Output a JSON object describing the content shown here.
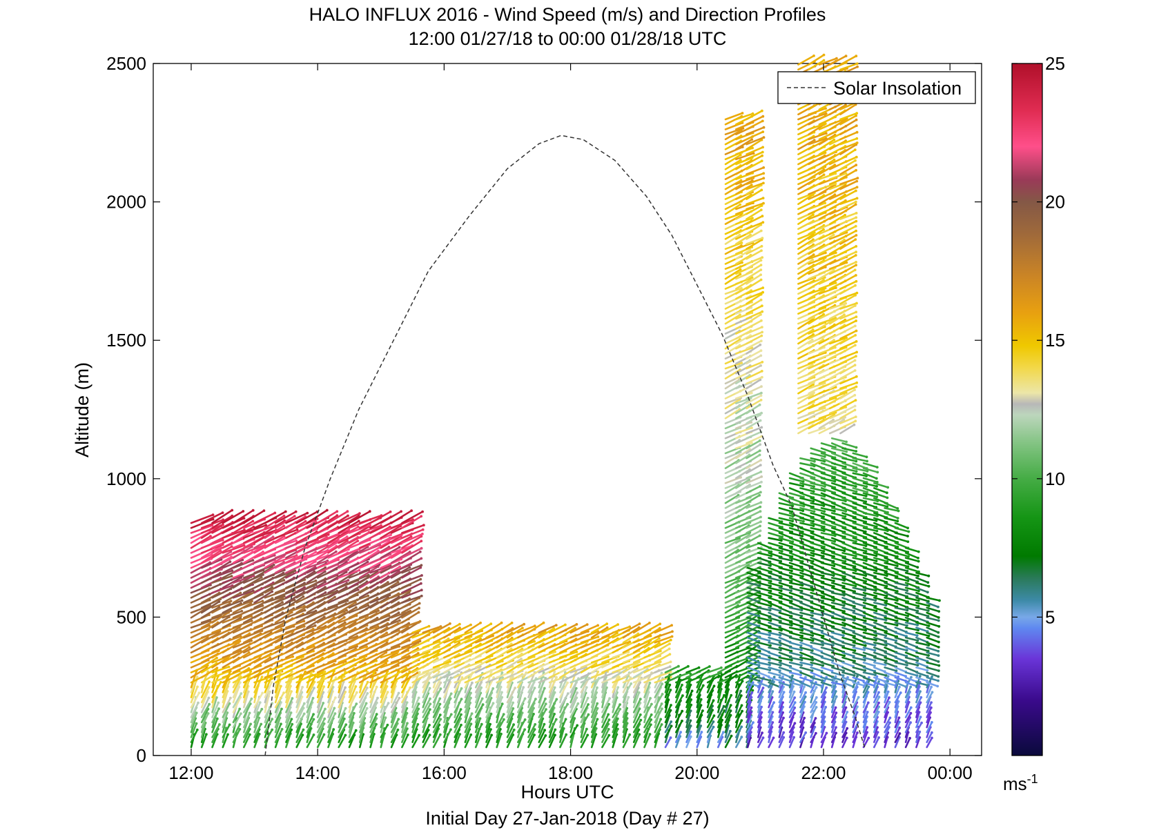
{
  "chart_data": {
    "type": "wind_barb_profile",
    "title": "HALO INFLUX 2016 - Wind Speed (m/s) and Direction Profiles",
    "subtitle": "12:00 01/27/18 to 00:00 01/28/18  UTC",
    "xlabel": "Hours UTC",
    "xlabel2": "Initial Day 27-Jan-2018 (Day # 27)",
    "ylabel": "Altitude (m)",
    "xlim": [
      11.4,
      24.5
    ],
    "ylim": [
      0,
      2500
    ],
    "x_ticks": [
      {
        "value": 12,
        "label": "12:00"
      },
      {
        "value": 14,
        "label": "14:00"
      },
      {
        "value": 16,
        "label": "16:00"
      },
      {
        "value": 18,
        "label": "18:00"
      },
      {
        "value": 20,
        "label": "20:00"
      },
      {
        "value": 22,
        "label": "22:00"
      },
      {
        "value": 24,
        "label": "00:00"
      }
    ],
    "y_ticks": [
      {
        "value": 0,
        "label": "0"
      },
      {
        "value": 500,
        "label": "500"
      },
      {
        "value": 1000,
        "label": "1000"
      },
      {
        "value": 1500,
        "label": "1500"
      },
      {
        "value": 2000,
        "label": "2000"
      },
      {
        "value": 2500,
        "label": "2500"
      }
    ],
    "grid": false,
    "legend": {
      "placement": "top-right",
      "entries": [
        {
          "label": "Solar Insolation",
          "style": "dashed",
          "color": "#333333"
        }
      ]
    },
    "colorbar": {
      "range": [
        0,
        25
      ],
      "ticks": [
        {
          "value": 5,
          "label": "5"
        },
        {
          "value": 10,
          "label": "10"
        },
        {
          "value": 15,
          "label": "15"
        },
        {
          "value": 20,
          "label": "20"
        },
        {
          "value": 25,
          "label": "25"
        }
      ],
      "unit_label": "ms",
      "unit_exponent": "-1",
      "stops": [
        {
          "v": 0.0,
          "color": "#0a0a3c"
        },
        {
          "v": 2.0,
          "color": "#3a0a8c"
        },
        {
          "v": 3.5,
          "color": "#6a35d8"
        },
        {
          "v": 4.6,
          "color": "#5f88f0"
        },
        {
          "v": 5.0,
          "color": "#78a8e8"
        },
        {
          "v": 5.6,
          "color": "#3d8aa8"
        },
        {
          "v": 6.4,
          "color": "#2a7a5a"
        },
        {
          "v": 7.2,
          "color": "#007a00"
        },
        {
          "v": 8.6,
          "color": "#159515"
        },
        {
          "v": 10.0,
          "color": "#45ac45"
        },
        {
          "v": 11.3,
          "color": "#84c484"
        },
        {
          "v": 12.3,
          "color": "#bcd6bc"
        },
        {
          "v": 12.7,
          "color": "#b8b8b8"
        },
        {
          "v": 13.1,
          "color": "#ece6a8"
        },
        {
          "v": 14.0,
          "color": "#f2d84a"
        },
        {
          "v": 14.8,
          "color": "#efc800"
        },
        {
          "v": 16.0,
          "color": "#e8a010"
        },
        {
          "v": 17.3,
          "color": "#cb8525"
        },
        {
          "v": 18.8,
          "color": "#a06a3a"
        },
        {
          "v": 20.0,
          "color": "#845846"
        },
        {
          "v": 20.8,
          "color": "#9a3a58"
        },
        {
          "v": 22.0,
          "color": "#ff4f8a"
        },
        {
          "v": 23.3,
          "color": "#e02c52"
        },
        {
          "v": 25.0,
          "color": "#b0102a"
        }
      ]
    },
    "solar_insolation": {
      "style": "dashed",
      "color": "#333333",
      "points": [
        [
          13.17,
          0
        ],
        [
          13.3,
          250
        ],
        [
          13.5,
          500
        ],
        [
          13.8,
          750
        ],
        [
          14.2,
          1000
        ],
        [
          14.65,
          1250
        ],
        [
          15.2,
          1500
        ],
        [
          15.75,
          1750
        ],
        [
          16.4,
          1950
        ],
        [
          17.0,
          2120
        ],
        [
          17.5,
          2210
        ],
        [
          17.85,
          2240
        ],
        [
          18.2,
          2225
        ],
        [
          18.7,
          2150
        ],
        [
          19.2,
          2020
        ],
        [
          19.6,
          1880
        ],
        [
          20.0,
          1700
        ],
        [
          20.4,
          1520
        ],
        [
          20.8,
          1300
        ],
        [
          21.2,
          1050
        ],
        [
          21.5,
          900
        ],
        [
          21.75,
          700
        ],
        [
          22.0,
          500
        ],
        [
          22.25,
          300
        ],
        [
          22.5,
          140
        ],
        [
          22.65,
          30
        ]
      ]
    },
    "wind_profiles": {
      "time_columns_hours": [
        12.0,
        12.33,
        12.67,
        13.0,
        13.33,
        13.67,
        14.0,
        14.33,
        14.67,
        15.0,
        15.33
      ],
      "description_note": "columns of wind arrows colored by wind speed",
      "segments": [
        {
          "t_start": 12.0,
          "t_end": 15.5,
          "max_alt": 850,
          "speed_low": 8,
          "speed_mid": 15,
          "speed_high": 24
        },
        {
          "t_start": 15.5,
          "t_end": 19.5,
          "max_alt": 450,
          "speed_low": 8,
          "speed_mid": 11,
          "speed_high": 16
        },
        {
          "t_start": 19.5,
          "t_end": 20.45,
          "max_alt": 300,
          "speed_low": 4,
          "speed_mid": 7,
          "speed_high": 9
        },
        {
          "t_start": 20.45,
          "t_end": 20.8,
          "max_alt": 2300,
          "speed_low": 6,
          "speed_mid": 11,
          "speed_high": 16
        },
        {
          "t_start": 20.8,
          "t_end": 23.8,
          "max_alt": 1150,
          "speed_low": 3,
          "speed_mid": 6,
          "speed_high": 10
        },
        {
          "t_start": 21.6,
          "t_end": 22.4,
          "max_alt": 2500,
          "speed_low": 10,
          "speed_mid": 13,
          "speed_high": 16
        }
      ]
    }
  }
}
